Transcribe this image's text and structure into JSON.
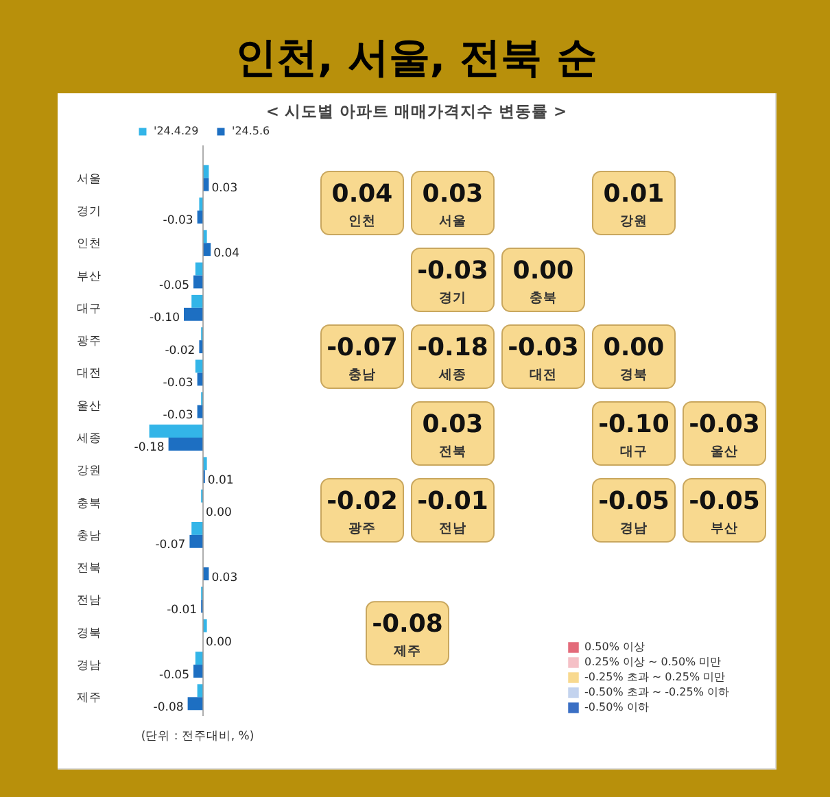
{
  "chart_data": [
    {
      "type": "other",
      "title": "인천, 서울, 전북 순",
      "subtitle": "< 시도별 아파트 매매가격지수 변동률 >"
    },
    {
      "type": "bar",
      "orientation": "horizontal",
      "legend": "top",
      "tick_labels": "y",
      "annotations": [
        "(단위 : 전주대비, %)"
      ],
      "categories": [
        "서울",
        "경기",
        "인천",
        "부산",
        "대구",
        "광주",
        "대전",
        "울산",
        "세종",
        "강원",
        "충북",
        "충남",
        "전북",
        "전남",
        "경북",
        "경남",
        "제주"
      ],
      "series": [
        {
          "name": "'24.4.29",
          "color": "#33b5e8",
          "values": [
            0.03,
            -0.02,
            0.02,
            -0.04,
            -0.06,
            -0.01,
            -0.04,
            -0.01,
            -0.28,
            0.02,
            -0.01,
            -0.06,
            0.0,
            -0.01,
            0.02,
            -0.04,
            -0.03
          ]
        },
        {
          "name": "'24.5.6",
          "color": "#1d6fc2",
          "values": [
            0.03,
            -0.03,
            0.04,
            -0.05,
            -0.1,
            -0.02,
            -0.03,
            -0.03,
            -0.18,
            0.01,
            0.0,
            -0.07,
            0.03,
            -0.01,
            0.0,
            -0.05,
            -0.08
          ],
          "value_labels": [
            "0.03",
            "-0.03",
            "0.04",
            "-0.05",
            "-0.10",
            "-0.02",
            "-0.03",
            "-0.03",
            "-0.18",
            "0.01",
            "0.00",
            "-0.07",
            "0.03",
            "-0.01",
            "0.00",
            "-0.05",
            "-0.08"
          ]
        }
      ]
    },
    {
      "type": "other",
      "legend": "bottom right",
      "categories": [
        "서울",
        "경기",
        "인천",
        "부산",
        "대구",
        "광주",
        "대전",
        "울산",
        "세종",
        "강원",
        "충북",
        "충남",
        "전북",
        "전남",
        "경북",
        "경남",
        "제주"
      ],
      "series": [
        {
          "name": "0.50% 이상",
          "color": "#e36b7a",
          "values": [
            null,
            null,
            null,
            null,
            null,
            null,
            null,
            null,
            null,
            null,
            null,
            null,
            null,
            null,
            null,
            null,
            null
          ]
        },
        {
          "name": "0.25% 이상 ~ 0.50% 미만",
          "color": "#f5c0c6",
          "values": [
            null,
            null,
            null,
            null,
            null,
            null,
            null,
            null,
            null,
            null,
            null,
            null,
            null,
            null,
            null,
            null,
            null
          ]
        },
        {
          "name": "-0.25% 초과 ~ 0.25% 미만",
          "color": "#f8d98f",
          "values": [
            0.03,
            -0.03,
            0.04,
            -0.05,
            -0.1,
            -0.02,
            -0.03,
            -0.03,
            -0.18,
            0.01,
            0.0,
            -0.07,
            0.03,
            -0.01,
            0.0,
            -0.05,
            -0.08
          ],
          "value_labels": [
            "0.03",
            "-0.03",
            "0.04",
            "-0.05",
            "-0.10",
            "-0.02",
            "-0.03",
            "-0.03",
            "-0.18",
            "0.01",
            "0.00",
            "-0.07",
            "0.03",
            "-0.01",
            "0.00",
            "-0.05",
            "-0.08"
          ]
        },
        {
          "name": "-0.50% 초과 ~ -0.25% 이하",
          "color": "#c3d3ee",
          "values": [
            null,
            null,
            null,
            null,
            null,
            null,
            null,
            null,
            null,
            null,
            null,
            null,
            null,
            null,
            null,
            null,
            null
          ]
        },
        {
          "name": "-0.50% 이하",
          "color": "#3a6fc4",
          "values": [
            null,
            null,
            null,
            null,
            null,
            null,
            null,
            null,
            null,
            null,
            null,
            null,
            null,
            null,
            null,
            null,
            null
          ]
        }
      ]
    }
  ]
}
